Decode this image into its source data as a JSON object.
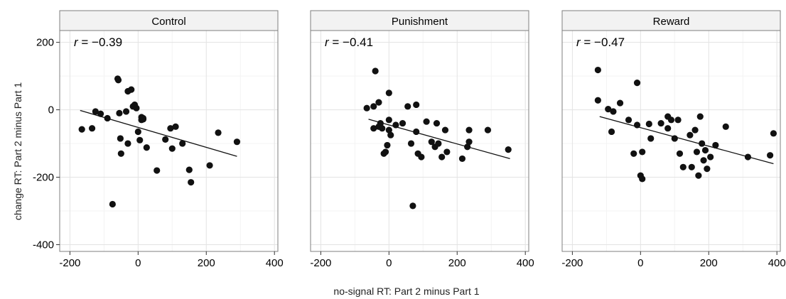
{
  "chart_data": {
    "type": "scatter",
    "xlabel": "no-signal RT: Part 2 minus Part 1",
    "ylabel": "change RT: Part 2 minus Part 1",
    "xlim": [
      -230,
      410
    ],
    "ylim": [
      -420,
      235
    ],
    "xticks": [
      -200,
      0,
      200,
      400
    ],
    "yticks": [
      200,
      0,
      -200,
      -400
    ],
    "grid": true,
    "colors": {
      "point": "#111111",
      "fit_line": "#111111",
      "strip_bg": "#f2f2f2",
      "grid_major": "#e3e3e3",
      "grid_minor": "#f3f3f3",
      "border": "#7f7f7f"
    },
    "panels": [
      {
        "name": "Control",
        "r_symbol": "r",
        "r_value": "= −0.39",
        "fit": {
          "x": [
            -170,
            290
          ],
          "y": [
            -2,
            -138
          ]
        },
        "points": [
          [
            -165,
            -58
          ],
          [
            -135,
            -55
          ],
          [
            -125,
            -5
          ],
          [
            -110,
            -12
          ],
          [
            -90,
            -25
          ],
          [
            -75,
            -280
          ],
          [
            -60,
            92
          ],
          [
            -58,
            88
          ],
          [
            -55,
            -10
          ],
          [
            -50,
            -130
          ],
          [
            -52,
            -85
          ],
          [
            -35,
            -5
          ],
          [
            -30,
            55
          ],
          [
            -30,
            -100
          ],
          [
            -20,
            60
          ],
          [
            -15,
            10
          ],
          [
            -10,
            15
          ],
          [
            -5,
            5
          ],
          [
            0,
            -65
          ],
          [
            5,
            -90
          ],
          [
            10,
            -22
          ],
          [
            10,
            -30
          ],
          [
            15,
            -28
          ],
          [
            15,
            -25
          ],
          [
            25,
            -112
          ],
          [
            55,
            -180
          ],
          [
            80,
            -88
          ],
          [
            95,
            -55
          ],
          [
            100,
            -115
          ],
          [
            110,
            -50
          ],
          [
            130,
            -100
          ],
          [
            150,
            -178
          ],
          [
            155,
            -215
          ],
          [
            210,
            -165
          ],
          [
            235,
            -68
          ],
          [
            290,
            -95
          ]
        ]
      },
      {
        "name": "Punishment",
        "r_symbol": "r",
        "r_value": "= −0.41",
        "fit": {
          "x": [
            -60,
            355
          ],
          "y": [
            -28,
            -145
          ]
        },
        "points": [
          [
            -65,
            5
          ],
          [
            -45,
            10
          ],
          [
            -45,
            -55
          ],
          [
            -40,
            115
          ],
          [
            -30,
            22
          ],
          [
            -30,
            -50
          ],
          [
            -25,
            -40
          ],
          [
            -20,
            -55
          ],
          [
            -15,
            -130
          ],
          [
            -10,
            -125
          ],
          [
            -5,
            -105
          ],
          [
            0,
            50
          ],
          [
            0,
            -30
          ],
          [
            0,
            -60
          ],
          [
            5,
            -75
          ],
          [
            20,
            -45
          ],
          [
            40,
            -40
          ],
          [
            55,
            10
          ],
          [
            65,
            -100
          ],
          [
            70,
            -285
          ],
          [
            80,
            15
          ],
          [
            80,
            -65
          ],
          [
            85,
            -130
          ],
          [
            95,
            -140
          ],
          [
            110,
            -35
          ],
          [
            125,
            -95
          ],
          [
            135,
            -110
          ],
          [
            140,
            -40
          ],
          [
            145,
            -100
          ],
          [
            155,
            -140
          ],
          [
            165,
            -60
          ],
          [
            170,
            -125
          ],
          [
            215,
            -145
          ],
          [
            230,
            -110
          ],
          [
            235,
            -95
          ],
          [
            235,
            -60
          ],
          [
            290,
            -60
          ],
          [
            350,
            -118
          ]
        ]
      },
      {
        "name": "Reward",
        "r_symbol": "r",
        "r_value": "= −0.47",
        "fit": {
          "x": [
            -120,
            390
          ],
          "y": [
            -20,
            -160
          ]
        },
        "points": [
          [
            -125,
            118
          ],
          [
            -125,
            28
          ],
          [
            -95,
            2
          ],
          [
            -85,
            -65
          ],
          [
            -80,
            -5
          ],
          [
            -60,
            20
          ],
          [
            -35,
            -30
          ],
          [
            -20,
            -130
          ],
          [
            -10,
            80
          ],
          [
            -10,
            -45
          ],
          [
            0,
            -195
          ],
          [
            5,
            -205
          ],
          [
            5,
            -125
          ],
          [
            25,
            -42
          ],
          [
            30,
            -85
          ],
          [
            60,
            -40
          ],
          [
            80,
            -55
          ],
          [
            80,
            -20
          ],
          [
            90,
            -30
          ],
          [
            100,
            -85
          ],
          [
            110,
            -30
          ],
          [
            115,
            -130
          ],
          [
            125,
            -170
          ],
          [
            145,
            -75
          ],
          [
            150,
            -170
          ],
          [
            160,
            -60
          ],
          [
            165,
            -125
          ],
          [
            170,
            -195
          ],
          [
            175,
            -20
          ],
          [
            180,
            -100
          ],
          [
            185,
            -150
          ],
          [
            190,
            -120
          ],
          [
            195,
            -175
          ],
          [
            205,
            -140
          ],
          [
            220,
            -105
          ],
          [
            250,
            -50
          ],
          [
            315,
            -140
          ],
          [
            380,
            -135
          ],
          [
            390,
            -70
          ]
        ]
      }
    ]
  }
}
